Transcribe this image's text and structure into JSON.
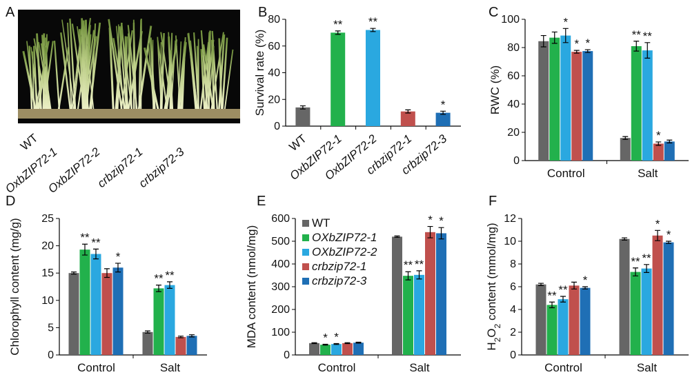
{
  "colors": {
    "wt": "#666666",
    "ox1": "#22b14c",
    "ox2": "#2aa8e0",
    "cr1": "#c0504d",
    "cr3": "#1f6fb5"
  },
  "panel_a": {
    "label": "A",
    "photo_labels": [
      "WT",
      "OxbZIP72-1",
      "OxbZIP72-2",
      "crbzip72-1",
      "crbzip72-3"
    ]
  },
  "chart_data": [
    {
      "panel": "B",
      "type": "bar",
      "ylabel": "Survival rate (%)",
      "ylim": [
        0,
        80
      ],
      "yticks": [
        0,
        20,
        40,
        60,
        80
      ],
      "categories": [
        "WT",
        "OxbZIP72-1",
        "OxbZIP72-2",
        "crbzip72-1",
        "crbzip72-3"
      ],
      "values": [
        14,
        70,
        72,
        11,
        10
      ],
      "errors": [
        1.2,
        1.3,
        1.2,
        1.2,
        1.2
      ],
      "significance": [
        "",
        "**",
        "**",
        "",
        "*"
      ]
    },
    {
      "panel": "C",
      "type": "bar",
      "ylabel": "RWC (%)",
      "ylim": [
        0,
        100
      ],
      "yticks": [
        0,
        20,
        40,
        60,
        80,
        100
      ],
      "categories": [
        "Control",
        "Salt"
      ],
      "series": [
        {
          "values": [
            84.5,
            16
          ],
          "errors": [
            4,
            1
          ],
          "significance": [
            "",
            ""
          ]
        },
        {
          "values": [
            87,
            81
          ],
          "errors": [
            4,
            3.5
          ],
          "significance": [
            "",
            "**"
          ]
        },
        {
          "values": [
            88.5,
            78
          ],
          "errors": [
            5,
            5.5
          ],
          "significance": [
            "*",
            "**"
          ]
        },
        {
          "values": [
            77,
            12
          ],
          "errors": [
            1,
            1.2
          ],
          "significance": [
            "*",
            "*"
          ]
        },
        {
          "values": [
            77.5,
            13.5
          ],
          "errors": [
            1,
            1
          ],
          "significance": [
            "*",
            ""
          ]
        }
      ]
    },
    {
      "panel": "D",
      "type": "bar",
      "ylabel": "Chlorophyll content (mg/g)",
      "ylim": [
        0,
        25
      ],
      "yticks": [
        0,
        5,
        10,
        15,
        20,
        25
      ],
      "categories": [
        "Control",
        "Salt"
      ],
      "series": [
        {
          "values": [
            15,
            4.2
          ],
          "errors": [
            0.2,
            0.2
          ],
          "significance": [
            "",
            ""
          ]
        },
        {
          "values": [
            19.3,
            12.2
          ],
          "errors": [
            1,
            0.6
          ],
          "significance": [
            "**",
            "**"
          ]
        },
        {
          "values": [
            18.5,
            12.8
          ],
          "errors": [
            0.9,
            0.6
          ],
          "significance": [
            "**",
            "**"
          ]
        },
        {
          "values": [
            15,
            3.3
          ],
          "errors": [
            0.8,
            0.15
          ],
          "significance": [
            "",
            ""
          ]
        },
        {
          "values": [
            16,
            3.5
          ],
          "errors": [
            0.8,
            0.2
          ],
          "significance": [
            "*",
            ""
          ]
        }
      ]
    },
    {
      "panel": "E",
      "type": "bar",
      "ylabel": "MDA content (nmol/mg)",
      "ylim": [
        0,
        600
      ],
      "yticks": [
        0,
        100,
        200,
        300,
        400,
        500,
        600
      ],
      "categories": [
        "Control",
        "Salt"
      ],
      "legend": [
        "WT",
        "OXbZIP72-1",
        "OXbZIP72-2",
        "crbzip72-1",
        "crbzip72-3"
      ],
      "legend_position": "top-left",
      "series": [
        {
          "values": [
            52,
            520
          ],
          "errors": [
            2,
            3
          ],
          "significance": [
            "",
            ""
          ]
        },
        {
          "values": [
            45,
            348
          ],
          "errors": [
            2,
            18
          ],
          "significance": [
            "*",
            "**"
          ]
        },
        {
          "values": [
            48,
            352
          ],
          "errors": [
            2,
            18
          ],
          "significance": [
            "*",
            "**"
          ]
        },
        {
          "values": [
            52,
            540
          ],
          "errors": [
            2,
            25
          ],
          "significance": [
            "",
            "*"
          ]
        },
        {
          "values": [
            54,
            535
          ],
          "errors": [
            2,
            25
          ],
          "significance": [
            "",
            "*"
          ]
        }
      ]
    },
    {
      "panel": "F",
      "type": "bar",
      "ylabel": "H2O2 content (mmol/mg)",
      "ylabel_parts": [
        "H",
        "2",
        "O",
        "2",
        " content (mmol/mg)"
      ],
      "ylim": [
        0,
        12
      ],
      "yticks": [
        0,
        2,
        4,
        6,
        8,
        10,
        12
      ],
      "categories": [
        "Control",
        "Salt"
      ],
      "series": [
        {
          "values": [
            6.2,
            10.2
          ],
          "errors": [
            0.1,
            0.1
          ],
          "significance": [
            "",
            ""
          ]
        },
        {
          "values": [
            4.4,
            7.3
          ],
          "errors": [
            0.25,
            0.35
          ],
          "significance": [
            "**",
            "**"
          ]
        },
        {
          "values": [
            4.9,
            7.6
          ],
          "errors": [
            0.25,
            0.35
          ],
          "significance": [
            "**",
            "**"
          ]
        },
        {
          "values": [
            6.1,
            10.5
          ],
          "errors": [
            0.3,
            0.45
          ],
          "significance": [
            "",
            "*"
          ]
        },
        {
          "values": [
            5.9,
            9.9
          ],
          "errors": [
            0.1,
            0.1
          ],
          "significance": [
            "*",
            "*"
          ]
        }
      ]
    }
  ]
}
